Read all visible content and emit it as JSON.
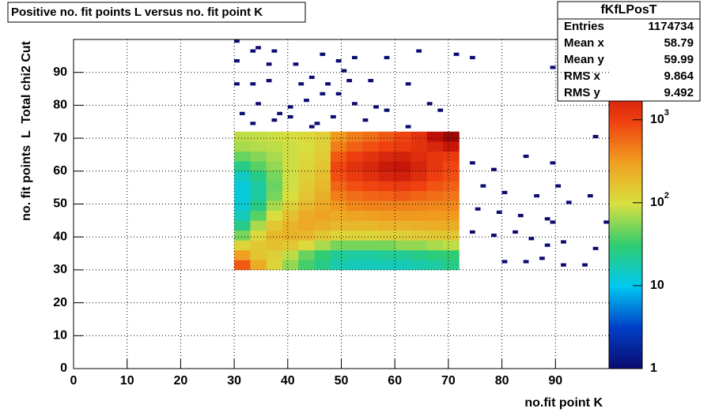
{
  "chart_data": {
    "type": "heatmap",
    "title": "Positive no. fit points L versus no. fit point K",
    "x_label": "no.fit point K",
    "y_label": "no. fit points  L  Total chi2 Cut",
    "xlim": [
      0,
      100
    ],
    "ylim": [
      0,
      100
    ],
    "zlim": [
      1,
      9300
    ],
    "zlog": true,
    "grid": true,
    "xticks": [
      0,
      10,
      20,
      30,
      40,
      50,
      60,
      70,
      80,
      90
    ],
    "yticks": [
      0,
      10,
      20,
      30,
      40,
      50,
      60,
      70,
      80,
      90
    ],
    "zticks": [
      1,
      10,
      {
        "value": 100,
        "label": "10",
        "exponent": "2"
      },
      {
        "value": 1000,
        "label": "10",
        "exponent": "3"
      }
    ],
    "palette": [
      "#0b0b70",
      "#0040c8",
      "#00c8f0",
      "#30cc70",
      "#d8e040",
      "#f0a020",
      "#f04010",
      "#c01008",
      "#700000"
    ],
    "xbins": [
      30,
      33,
      36,
      39,
      42,
      45,
      48,
      51,
      54,
      57,
      60,
      63,
      66,
      69,
      72
    ],
    "ybins": [
      30,
      33,
      36,
      39,
      42,
      45,
      48,
      51,
      54,
      57,
      60,
      63,
      66,
      69,
      72
    ],
    "z": [
      [
        700,
        250,
        120,
        60,
        35,
        25,
        18,
        16,
        16,
        16,
        16,
        18,
        20,
        25
      ],
      [
        300,
        160,
        130,
        80,
        45,
        30,
        22,
        20,
        20,
        22,
        22,
        25,
        28,
        30
      ],
      [
        120,
        150,
        170,
        150,
        110,
        70,
        50,
        50,
        50,
        50,
        60,
        60,
        70,
        80
      ],
      [
        50,
        110,
        200,
        220,
        200,
        150,
        120,
        120,
        120,
        130,
        130,
        140,
        150,
        160
      ],
      [
        25,
        70,
        150,
        220,
        260,
        230,
        200,
        200,
        200,
        220,
        220,
        230,
        240,
        240
      ],
      [
        16,
        40,
        100,
        170,
        250,
        280,
        260,
        280,
        300,
        320,
        330,
        330,
        320,
        320
      ],
      [
        13,
        25,
        70,
        130,
        200,
        260,
        330,
        400,
        420,
        430,
        430,
        420,
        400,
        400
      ],
      [
        12,
        20,
        50,
        100,
        160,
        230,
        450,
        550,
        600,
        650,
        700,
        600,
        550,
        500
      ],
      [
        12,
        20,
        45,
        90,
        140,
        200,
        600,
        800,
        900,
        1000,
        1100,
        950,
        750,
        650
      ],
      [
        15,
        25,
        50,
        90,
        130,
        180,
        800,
        1100,
        1400,
        1800,
        2000,
        1500,
        1000,
        800
      ],
      [
        25,
        40,
        60,
        90,
        120,
        160,
        900,
        1300,
        1700,
        2400,
        2600,
        1800,
        1200,
        900
      ],
      [
        45,
        55,
        70,
        90,
        110,
        140,
        700,
        1000,
        1300,
        1700,
        1900,
        1500,
        1200,
        1100
      ],
      [
        70,
        75,
        80,
        90,
        100,
        130,
        450,
        650,
        800,
        950,
        1100,
        1300,
        1700,
        2500
      ],
      [
        80,
        85,
        90,
        100,
        110,
        130,
        320,
        450,
        550,
        700,
        900,
        1300,
        3000,
        5000
      ]
    ],
    "points": {
      "x": [
        30,
        34,
        37,
        30,
        33,
        36,
        41,
        46,
        49,
        52,
        58,
        64,
        71,
        74,
        89,
        30,
        33,
        36,
        42,
        44,
        47,
        50,
        51,
        55,
        62,
        34,
        40,
        43,
        46,
        49,
        52,
        56,
        58,
        66,
        31,
        38,
        40,
        45,
        48,
        54,
        62,
        33,
        37,
        44,
        68,
        97,
        74,
        78,
        84,
        89,
        76,
        80,
        86,
        90,
        75,
        79,
        83,
        88,
        92,
        96,
        74,
        78,
        82,
        85,
        91,
        97,
        80,
        84,
        87,
        91,
        95,
        88,
        89,
        99
      ],
      "y": [
        99,
        97,
        96,
        93,
        96,
        92,
        92,
        95,
        93,
        94,
        94,
        96,
        95,
        94,
        91,
        86,
        86,
        87,
        86,
        88,
        86,
        90,
        87,
        87,
        86,
        80,
        79,
        81,
        83,
        83,
        80,
        79,
        78,
        80,
        77,
        77,
        76,
        74,
        76,
        75,
        73,
        74,
        75,
        73,
        78,
        70,
        62,
        60,
        64,
        62,
        55,
        53,
        52,
        55,
        48,
        47,
        46,
        45,
        50,
        52,
        41,
        40,
        41,
        39,
        38,
        36,
        32,
        32,
        33,
        31,
        31,
        37,
        44,
        44
      ],
      "z": 1
    },
    "stats": {
      "title": "fKfLPosT",
      "rows": [
        {
          "label": "Entries",
          "value": 1174734
        },
        {
          "label": "Mean x",
          "value": 58.79
        },
        {
          "label": "Mean y",
          "value": 59.99
        },
        {
          "label": "RMS x",
          "value": 9.864
        },
        {
          "label": "RMS y",
          "value": 9.492
        }
      ]
    }
  }
}
